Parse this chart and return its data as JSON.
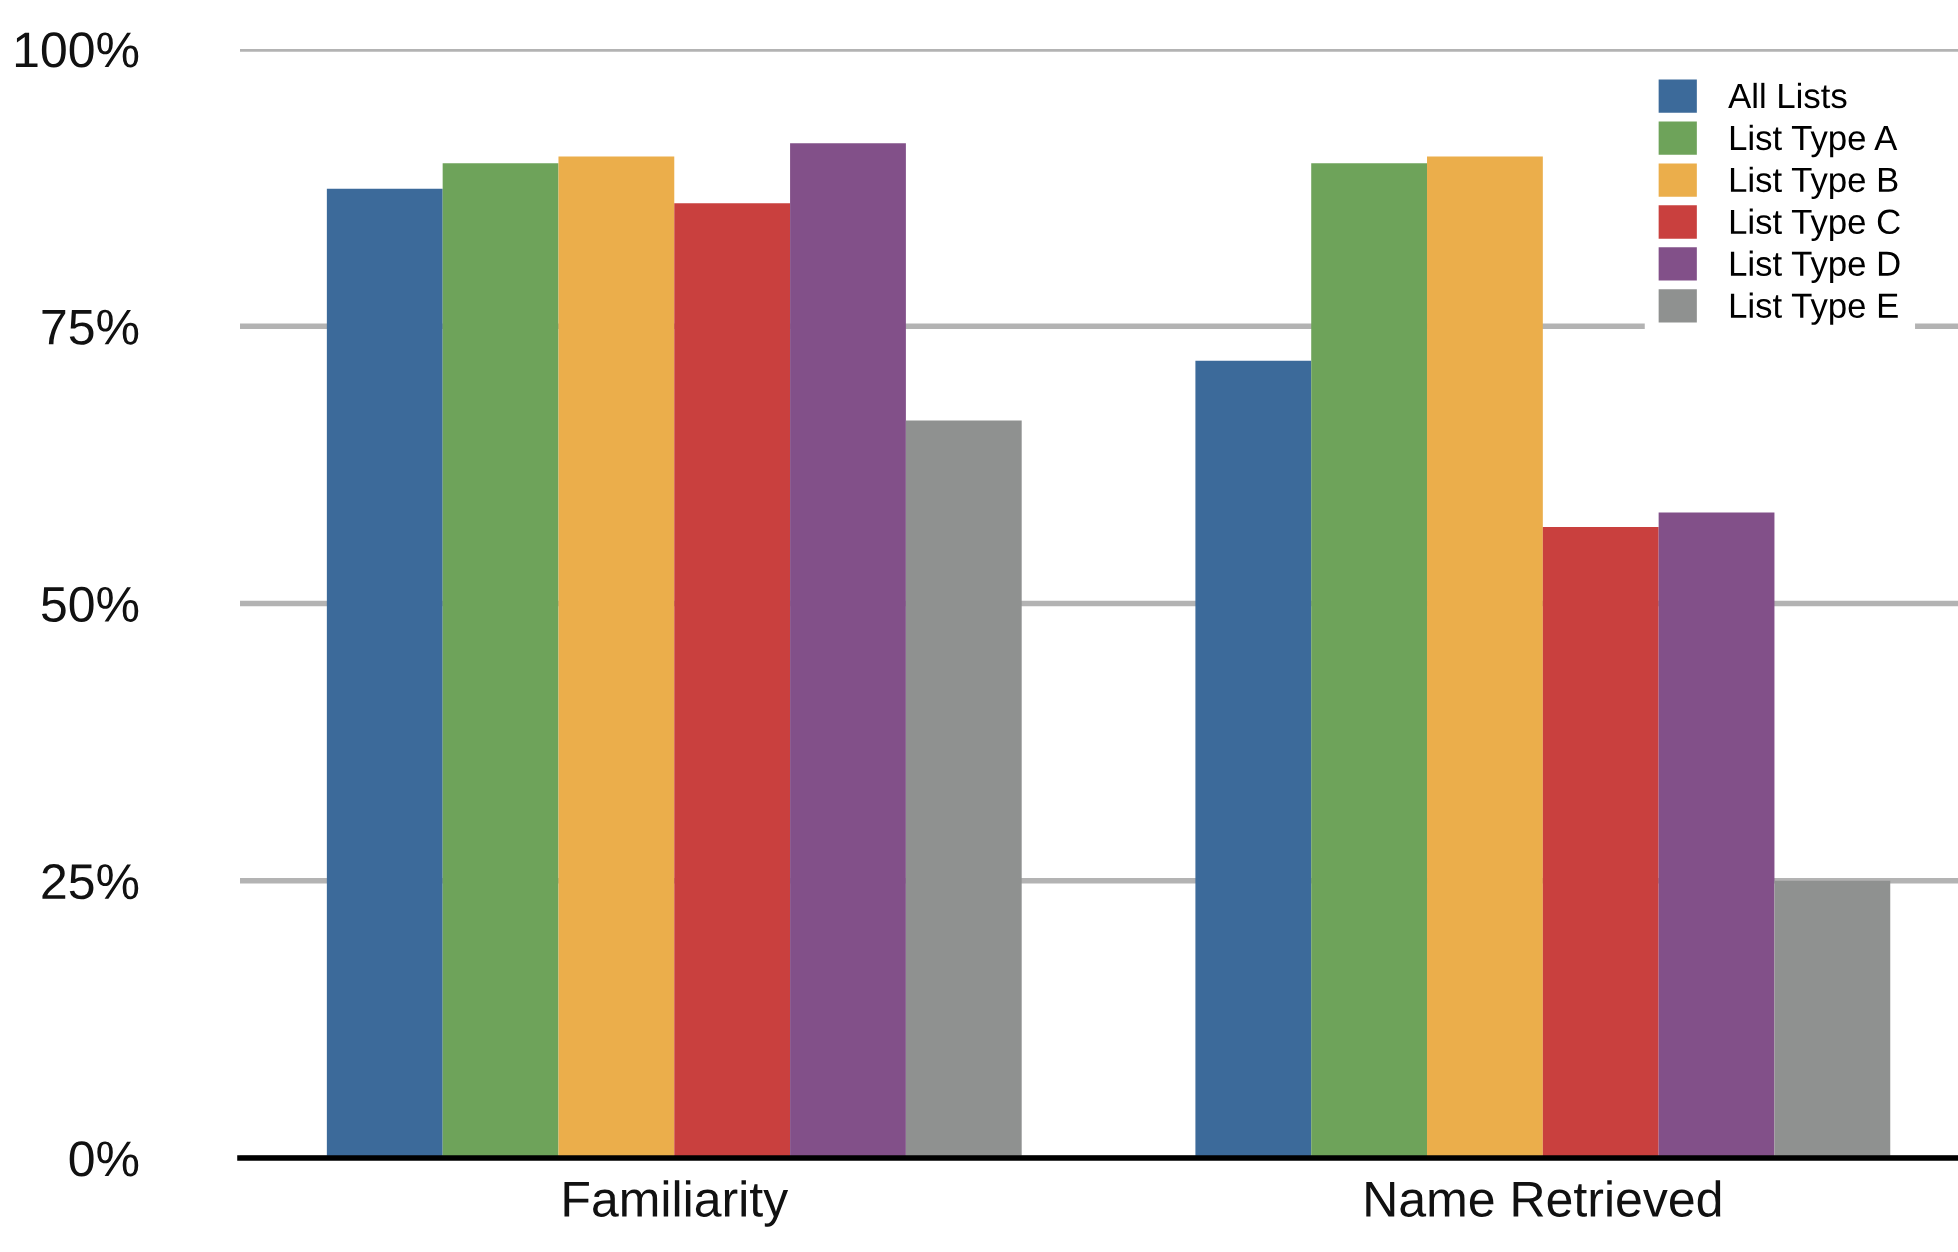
{
  "chart_data": {
    "type": "bar",
    "categories": [
      "Familiarity",
      "Name Retrieved"
    ],
    "series": [
      {
        "name": "All Lists",
        "color": "#3c6a9a",
        "values": [
          87.4,
          71.9
        ]
      },
      {
        "name": "List Type A",
        "color": "#6ea35a",
        "values": [
          89.7,
          89.7
        ]
      },
      {
        "name": "List Type B",
        "color": "#ebae4b",
        "values": [
          90.3,
          90.3
        ]
      },
      {
        "name": "List Type C",
        "color": "#c9403e",
        "values": [
          86.1,
          56.9
        ]
      },
      {
        "name": "List Type D",
        "color": "#825089",
        "values": [
          91.5,
          58.2
        ]
      },
      {
        "name": "List Type E",
        "color": "#8f9190",
        "values": [
          66.5,
          25.0
        ]
      }
    ],
    "ylim": [
      0,
      100
    ],
    "yticks": [
      {
        "value": 0,
        "label": "0%"
      },
      {
        "value": 25,
        "label": "25%"
      },
      {
        "value": 50,
        "label": "50%"
      },
      {
        "value": 75,
        "label": "75%"
      },
      {
        "value": 100,
        "label": "100%"
      }
    ],
    "grid": "y",
    "legend": "top right"
  }
}
